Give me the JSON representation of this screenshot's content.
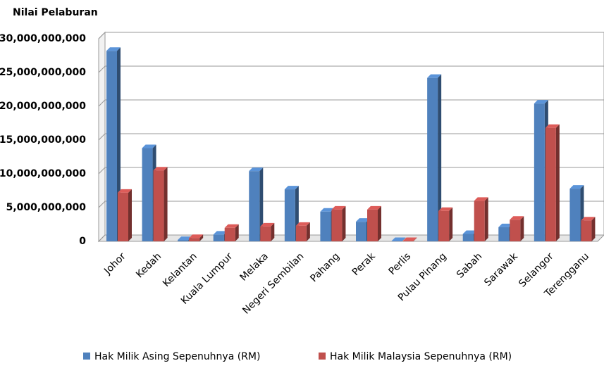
{
  "chart_data": {
    "type": "bar3d",
    "title": "Nilai Pelaburan",
    "categories": [
      "Johor",
      "Kedah",
      "Kelantan",
      "Kuala Lumpur",
      "Melaka",
      "Negeri Sembilan",
      "Pahang",
      "Perak",
      "Perlis",
      "Pulau Pinang",
      "Sabah",
      "Sarawak",
      "Selangor",
      "Terengganu"
    ],
    "series": [
      {
        "name": "Hak Milik Asing Sepenuhnya (RM)",
        "color": "#4f81bd",
        "values": [
          28200000000,
          13800000000,
          200000000,
          1000000000,
          10400000000,
          7700000000,
          4400000000,
          2900000000,
          50000000,
          24200000000,
          1100000000,
          2100000000,
          20400000000,
          7800000000
        ]
      },
      {
        "name": "Hak Milik Malaysia Sepenuhnya (RM)",
        "color": "#c0504d",
        "values": [
          7200000000,
          10500000000,
          500000000,
          2000000000,
          2200000000,
          2300000000,
          4700000000,
          4700000000,
          50000000,
          4500000000,
          6000000000,
          3200000000,
          16800000000,
          3100000000
        ]
      }
    ],
    "ylim": [
      0,
      30000000000
    ],
    "yticks": [
      0,
      {
        "value": 5000000000,
        "label": "5,000,000,000"
      },
      {
        "value": 10000000000,
        "label": "10,000,000,000"
      },
      {
        "value": 15000000000,
        "label": "15,000,000,000"
      },
      {
        "value": 20000000000,
        "label": "20,000,000,000"
      },
      {
        "value": 25000000000,
        "label": "25,000,000,000"
      },
      {
        "value": 30000000000,
        "label": "30,000,000,000"
      }
    ],
    "grid": true,
    "legend": "bottom"
  }
}
